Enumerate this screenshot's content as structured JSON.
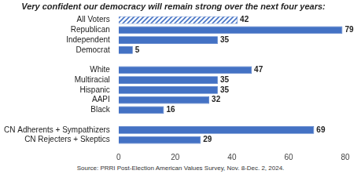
{
  "chart_data": {
    "type": "bar",
    "orientation": "horizontal",
    "title": "Very confident our democracy will remain strong over the next four years:",
    "source": "Source: PRRI Post-Election American Values Survey, Nov. 8-Dec. 2, 2024.",
    "categories": [
      "All Voters",
      "Republican",
      "Independent",
      "Democrat",
      null,
      "White",
      "Multiracial",
      "Hispanic",
      "AAPI",
      "Black",
      null,
      "CN Adherents + Sympathizers",
      "CN Rejecters + Skeptics"
    ],
    "values": [
      42,
      79,
      35,
      5,
      null,
      47,
      35,
      35,
      32,
      16,
      null,
      69,
      29
    ],
    "color": "#4472c4",
    "xlim": [
      0,
      80
    ],
    "xticks": [
      0,
      20,
      40,
      60,
      80
    ],
    "grid": false,
    "data_labels": true
  }
}
